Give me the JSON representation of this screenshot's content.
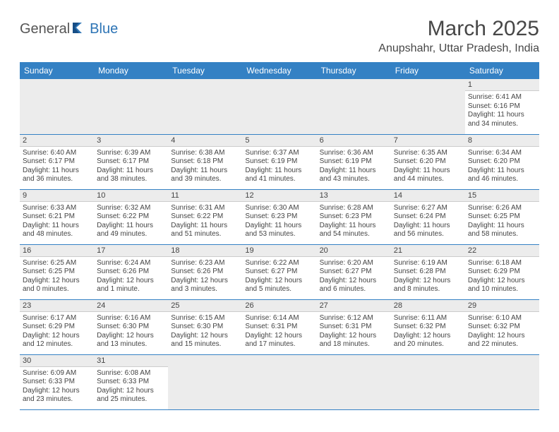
{
  "logo": {
    "general": "General",
    "blue": "Blue"
  },
  "title": "March 2025",
  "location": "Anupshahr, Uttar Pradesh, India",
  "colors": {
    "header_bg": "#3481c4",
    "header_text": "#ffffff",
    "blank_bg": "#ececec",
    "text": "#444444",
    "title_text": "#474747",
    "logo_gray": "#555555",
    "logo_blue": "#2d74b5"
  },
  "weekdays": [
    "Sunday",
    "Monday",
    "Tuesday",
    "Wednesday",
    "Thursday",
    "Friday",
    "Saturday"
  ],
  "weeks": [
    [
      null,
      null,
      null,
      null,
      null,
      null,
      {
        "n": "1",
        "sr": "Sunrise: 6:41 AM",
        "ss": "Sunset: 6:16 PM",
        "dl": "Daylight: 11 hours and 34 minutes."
      }
    ],
    [
      {
        "n": "2",
        "sr": "Sunrise: 6:40 AM",
        "ss": "Sunset: 6:17 PM",
        "dl": "Daylight: 11 hours and 36 minutes."
      },
      {
        "n": "3",
        "sr": "Sunrise: 6:39 AM",
        "ss": "Sunset: 6:17 PM",
        "dl": "Daylight: 11 hours and 38 minutes."
      },
      {
        "n": "4",
        "sr": "Sunrise: 6:38 AM",
        "ss": "Sunset: 6:18 PM",
        "dl": "Daylight: 11 hours and 39 minutes."
      },
      {
        "n": "5",
        "sr": "Sunrise: 6:37 AM",
        "ss": "Sunset: 6:19 PM",
        "dl": "Daylight: 11 hours and 41 minutes."
      },
      {
        "n": "6",
        "sr": "Sunrise: 6:36 AM",
        "ss": "Sunset: 6:19 PM",
        "dl": "Daylight: 11 hours and 43 minutes."
      },
      {
        "n": "7",
        "sr": "Sunrise: 6:35 AM",
        "ss": "Sunset: 6:20 PM",
        "dl": "Daylight: 11 hours and 44 minutes."
      },
      {
        "n": "8",
        "sr": "Sunrise: 6:34 AM",
        "ss": "Sunset: 6:20 PM",
        "dl": "Daylight: 11 hours and 46 minutes."
      }
    ],
    [
      {
        "n": "9",
        "sr": "Sunrise: 6:33 AM",
        "ss": "Sunset: 6:21 PM",
        "dl": "Daylight: 11 hours and 48 minutes."
      },
      {
        "n": "10",
        "sr": "Sunrise: 6:32 AM",
        "ss": "Sunset: 6:22 PM",
        "dl": "Daylight: 11 hours and 49 minutes."
      },
      {
        "n": "11",
        "sr": "Sunrise: 6:31 AM",
        "ss": "Sunset: 6:22 PM",
        "dl": "Daylight: 11 hours and 51 minutes."
      },
      {
        "n": "12",
        "sr": "Sunrise: 6:30 AM",
        "ss": "Sunset: 6:23 PM",
        "dl": "Daylight: 11 hours and 53 minutes."
      },
      {
        "n": "13",
        "sr": "Sunrise: 6:28 AM",
        "ss": "Sunset: 6:23 PM",
        "dl": "Daylight: 11 hours and 54 minutes."
      },
      {
        "n": "14",
        "sr": "Sunrise: 6:27 AM",
        "ss": "Sunset: 6:24 PM",
        "dl": "Daylight: 11 hours and 56 minutes."
      },
      {
        "n": "15",
        "sr": "Sunrise: 6:26 AM",
        "ss": "Sunset: 6:25 PM",
        "dl": "Daylight: 11 hours and 58 minutes."
      }
    ],
    [
      {
        "n": "16",
        "sr": "Sunrise: 6:25 AM",
        "ss": "Sunset: 6:25 PM",
        "dl": "Daylight: 12 hours and 0 minutes."
      },
      {
        "n": "17",
        "sr": "Sunrise: 6:24 AM",
        "ss": "Sunset: 6:26 PM",
        "dl": "Daylight: 12 hours and 1 minute."
      },
      {
        "n": "18",
        "sr": "Sunrise: 6:23 AM",
        "ss": "Sunset: 6:26 PM",
        "dl": "Daylight: 12 hours and 3 minutes."
      },
      {
        "n": "19",
        "sr": "Sunrise: 6:22 AM",
        "ss": "Sunset: 6:27 PM",
        "dl": "Daylight: 12 hours and 5 minutes."
      },
      {
        "n": "20",
        "sr": "Sunrise: 6:20 AM",
        "ss": "Sunset: 6:27 PM",
        "dl": "Daylight: 12 hours and 6 minutes."
      },
      {
        "n": "21",
        "sr": "Sunrise: 6:19 AM",
        "ss": "Sunset: 6:28 PM",
        "dl": "Daylight: 12 hours and 8 minutes."
      },
      {
        "n": "22",
        "sr": "Sunrise: 6:18 AM",
        "ss": "Sunset: 6:29 PM",
        "dl": "Daylight: 12 hours and 10 minutes."
      }
    ],
    [
      {
        "n": "23",
        "sr": "Sunrise: 6:17 AM",
        "ss": "Sunset: 6:29 PM",
        "dl": "Daylight: 12 hours and 12 minutes."
      },
      {
        "n": "24",
        "sr": "Sunrise: 6:16 AM",
        "ss": "Sunset: 6:30 PM",
        "dl": "Daylight: 12 hours and 13 minutes."
      },
      {
        "n": "25",
        "sr": "Sunrise: 6:15 AM",
        "ss": "Sunset: 6:30 PM",
        "dl": "Daylight: 12 hours and 15 minutes."
      },
      {
        "n": "26",
        "sr": "Sunrise: 6:14 AM",
        "ss": "Sunset: 6:31 PM",
        "dl": "Daylight: 12 hours and 17 minutes."
      },
      {
        "n": "27",
        "sr": "Sunrise: 6:12 AM",
        "ss": "Sunset: 6:31 PM",
        "dl": "Daylight: 12 hours and 18 minutes."
      },
      {
        "n": "28",
        "sr": "Sunrise: 6:11 AM",
        "ss": "Sunset: 6:32 PM",
        "dl": "Daylight: 12 hours and 20 minutes."
      },
      {
        "n": "29",
        "sr": "Sunrise: 6:10 AM",
        "ss": "Sunset: 6:32 PM",
        "dl": "Daylight: 12 hours and 22 minutes."
      }
    ],
    [
      {
        "n": "30",
        "sr": "Sunrise: 6:09 AM",
        "ss": "Sunset: 6:33 PM",
        "dl": "Daylight: 12 hours and 23 minutes."
      },
      {
        "n": "31",
        "sr": "Sunrise: 6:08 AM",
        "ss": "Sunset: 6:33 PM",
        "dl": "Daylight: 12 hours and 25 minutes."
      },
      null,
      null,
      null,
      null,
      null
    ]
  ]
}
